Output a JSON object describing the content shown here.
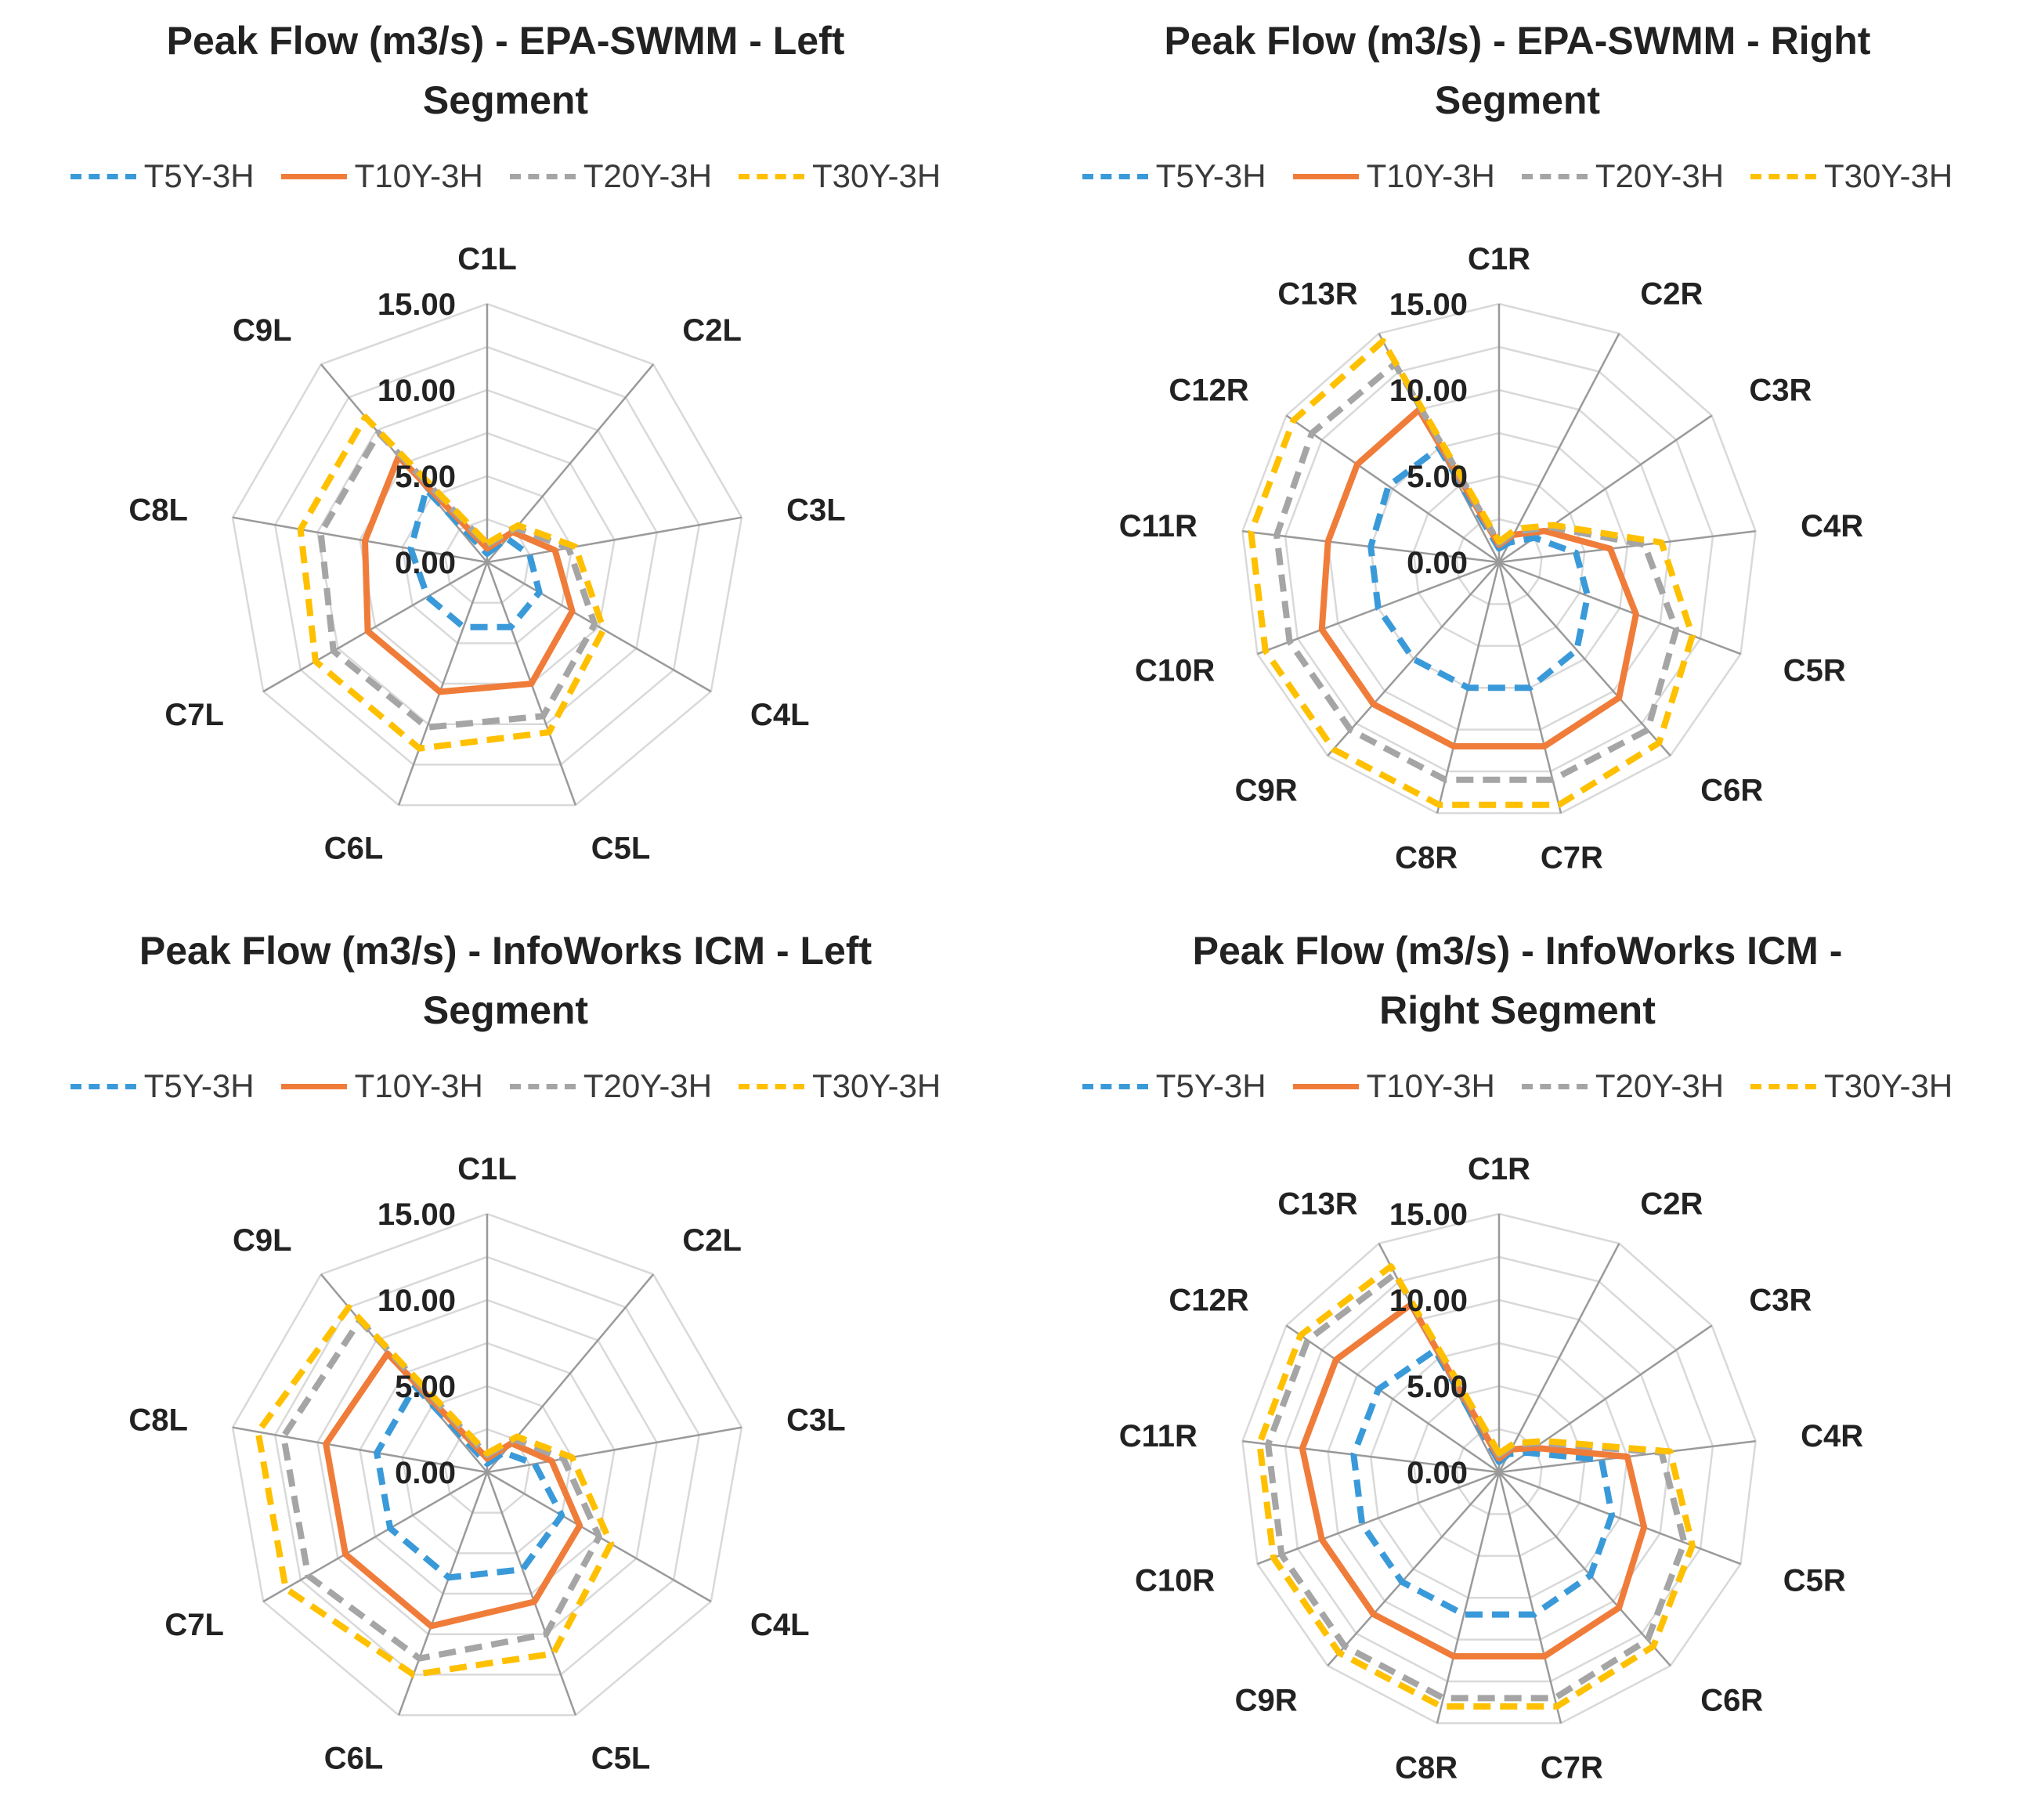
{
  "colors": {
    "T5Y-3H": "#3a9ad9",
    "T10Y-3H": "#f07c3a",
    "T20Y-3H": "#a5a5a5",
    "T30Y-3H": "#ffc000",
    "grid": "#d9d9d9",
    "spoke": "#9a9a9a"
  },
  "chart_data": [
    {
      "type": "radar",
      "title": [
        "Peak Flow (m3/s) - EPA-SWMM - Left",
        "Segment"
      ],
      "axes": [
        "C1L",
        "C2L",
        "C3L",
        "C4L",
        "C5L",
        "C6L",
        "C7L",
        "C8L",
        "C9L"
      ],
      "rlim": [
        0,
        15
      ],
      "ticks": [
        "0.00",
        "5.00",
        "10.00",
        "15.00"
      ],
      "tick_values": [
        0,
        5,
        10,
        15
      ],
      "legend_position": "top",
      "series": [
        {
          "name": "T5Y-3H",
          "style": "dashed",
          "values": [
            0.5,
            1.8,
            2.5,
            3.5,
            4.0,
            4.0,
            4.0,
            4.5,
            5.5
          ]
        },
        {
          "name": "T10Y-3H",
          "style": "solid",
          "values": [
            0.8,
            2.3,
            4.0,
            5.7,
            7.5,
            8.0,
            8.0,
            7.2,
            8.0
          ]
        },
        {
          "name": "T20Y-3H",
          "style": "dashed",
          "values": [
            1.0,
            2.6,
            4.8,
            7.2,
            9.5,
            10.2,
            10.3,
            9.8,
            9.8
          ]
        },
        {
          "name": "T30Y-3H",
          "style": "dashed",
          "values": [
            1.1,
            2.8,
            5.2,
            7.8,
            10.5,
            11.5,
            11.5,
            11.0,
            11.0
          ]
        }
      ]
    },
    {
      "type": "radar",
      "title": [
        "Peak Flow (m3/s) - EPA-SWMM - Right",
        "Segment"
      ],
      "axes": [
        "C1R",
        "C2R",
        "C3R",
        "C4R",
        "C5R",
        "C6R",
        "C7R",
        "C8R",
        "C9R",
        "C10R",
        "C11R",
        "C12R",
        "C13R"
      ],
      "rlim": [
        0,
        15
      ],
      "ticks": [
        "0.00",
        "5.00",
        "10.00",
        "15.00"
      ],
      "tick_values": [
        0,
        5,
        10,
        15
      ],
      "legend_position": "top",
      "series": [
        {
          "name": "T5Y-3H",
          "style": "dashed",
          "values": [
            0.8,
            1.3,
            2.5,
            4.5,
            5.5,
            6.8,
            7.5,
            7.5,
            7.5,
            7.5,
            7.5,
            7.8,
            7.5
          ]
        },
        {
          "name": "T10Y-3H",
          "style": "solid",
          "values": [
            1.0,
            1.8,
            3.2,
            6.5,
            8.5,
            10.5,
            11.0,
            11.0,
            11.0,
            11.0,
            10.0,
            10.0,
            10.0
          ]
        },
        {
          "name": "T20Y-3H",
          "style": "dashed",
          "values": [
            1.1,
            2.0,
            3.6,
            8.5,
            11.0,
            13.0,
            13.0,
            13.0,
            13.0,
            13.0,
            13.0,
            13.2,
            13.0
          ]
        },
        {
          "name": "T30Y-3H",
          "style": "dashed",
          "values": [
            1.2,
            2.2,
            3.8,
            9.5,
            12.0,
            14.0,
            14.5,
            14.5,
            14.5,
            14.5,
            14.5,
            14.5,
            14.5
          ]
        }
      ]
    },
    {
      "type": "radar",
      "title": [
        "Peak Flow (m3/s) - InfoWorks ICM - Left",
        "Segment"
      ],
      "axes": [
        "C1L",
        "C2L",
        "C3L",
        "C4L",
        "C5L",
        "C6L",
        "C7L",
        "C8L",
        "C9L"
      ],
      "rlim": [
        0,
        15
      ],
      "ticks": [
        "0.00",
        "5.00",
        "10.00",
        "15.00"
      ],
      "tick_values": [
        0,
        5,
        10,
        15
      ],
      "legend_position": "top",
      "series": [
        {
          "name": "T5Y-3H",
          "style": "dashed",
          "values": [
            0.5,
            1.5,
            2.8,
            5.0,
            6.0,
            6.5,
            6.5,
            6.5,
            6.5
          ]
        },
        {
          "name": "T10Y-3H",
          "style": "solid",
          "values": [
            0.8,
            2.2,
            3.8,
            6.2,
            8.0,
            9.5,
            9.5,
            9.5,
            9.0
          ]
        },
        {
          "name": "T20Y-3H",
          "style": "dashed",
          "values": [
            1.0,
            2.5,
            4.5,
            7.5,
            10.0,
            11.5,
            12.0,
            12.0,
            11.5
          ]
        },
        {
          "name": "T30Y-3H",
          "style": "dashed",
          "values": [
            1.1,
            2.7,
            5.0,
            8.3,
            11.2,
            12.5,
            13.5,
            13.5,
            12.5
          ]
        }
      ]
    },
    {
      "type": "radar",
      "title": [
        "Peak Flow (m3/s) - InfoWorks ICM -",
        "Right Segment"
      ],
      "axes": [
        "C1R",
        "C2R",
        "C3R",
        "C4R",
        "C5R",
        "C6R",
        "C7R",
        "C8R",
        "C9R",
        "C10R",
        "C11R",
        "C12R",
        "C13R"
      ],
      "rlim": [
        0,
        15
      ],
      "ticks": [
        "0.00",
        "5.00",
        "10.00",
        "15.00"
      ],
      "tick_values": [
        0,
        5,
        10,
        15
      ],
      "legend_position": "top",
      "series": [
        {
          "name": "T5Y-3H",
          "style": "dashed",
          "values": [
            0.6,
            1.2,
            2.0,
            6.0,
            7.0,
            8.0,
            8.5,
            8.5,
            8.5,
            8.5,
            8.5,
            8.5,
            8.0
          ]
        },
        {
          "name": "T10Y-3H",
          "style": "solid",
          "values": [
            0.8,
            1.5,
            2.5,
            7.5,
            9.0,
            10.5,
            11.0,
            11.0,
            11.0,
            11.0,
            11.5,
            11.5,
            11.0
          ]
        },
        {
          "name": "T20Y-3H",
          "style": "dashed",
          "values": [
            1.0,
            1.8,
            3.0,
            9.5,
            11.5,
            13.0,
            13.5,
            13.5,
            13.5,
            13.5,
            13.5,
            13.5,
            13.0
          ]
        },
        {
          "name": "T30Y-3H",
          "style": "dashed",
          "values": [
            1.1,
            1.9,
            3.2,
            10.0,
            12.0,
            13.5,
            14.0,
            14.0,
            14.0,
            14.0,
            14.0,
            14.0,
            13.5
          ]
        }
      ]
    }
  ]
}
